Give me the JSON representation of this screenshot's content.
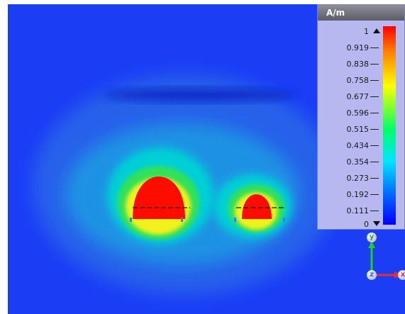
{
  "legend": {
    "unit": "A/m",
    "ticks": [
      "1",
      "0.919",
      "0.838",
      "0.758",
      "0.677",
      "0.596",
      "0.515",
      "0.434",
      "0.354",
      "0.273",
      "0.192",
      "0.111",
      "0"
    ]
  },
  "triad": {
    "y_label": "y",
    "z_label": "z",
    "x_label": "x"
  },
  "colors": {
    "background": "#1b3ef5",
    "peak": "#ff0000",
    "x_axis": "#e53030",
    "y_axis": "#22cc22",
    "z_axis": "#3355ff"
  }
}
